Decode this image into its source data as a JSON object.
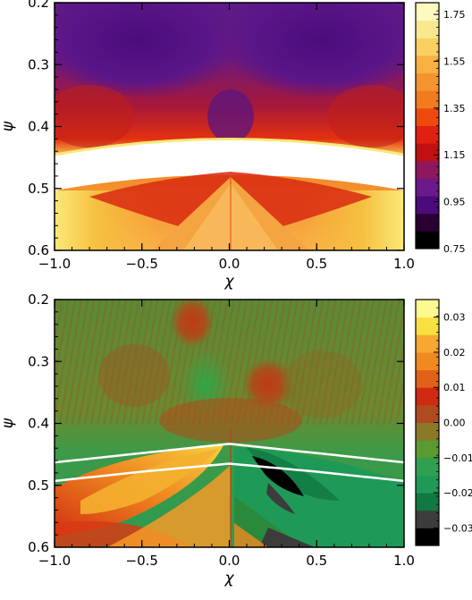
{
  "chart_data": [
    {
      "type": "heatmap",
      "title": "",
      "xlabel": "χ",
      "ylabel": "ψ",
      "xlim": [
        -1.0,
        1.0
      ],
      "ylim": [
        0.6,
        0.2
      ],
      "xticks": [
        "-1.0",
        "-0.5",
        "0.0",
        "0.5",
        "1.0"
      ],
      "yticks": [
        "0.2",
        "0.3",
        "0.4",
        "0.5",
        "0.6"
      ],
      "colorbar": {
        "range": [
          0.75,
          1.8
        ],
        "ticks": [
          "0.75",
          "0.95",
          "1.15",
          "1.35",
          "1.55",
          "1.75"
        ],
        "colors": [
          "#000000",
          "#2a0033",
          "#4c0a7a",
          "#6a1a8a",
          "#8e1860",
          "#c01010",
          "#e02010",
          "#ee4a10",
          "#f47a20",
          "#f49430",
          "#f8b040",
          "#fad060",
          "#f8e890",
          "#fdfac0"
        ]
      },
      "features": [
        "two purple minima near psi 0.25 on either side of chi 0",
        "white excluded band psi 0.43 to 0.49",
        "red wedge below band peaking at chi 0"
      ]
    },
    {
      "type": "heatmap",
      "title": "",
      "xlabel": "χ",
      "ylabel": "ψ",
      "xlim": [
        -1.0,
        1.0
      ],
      "ylim": [
        0.6,
        0.2
      ],
      "xticks": [
        "-1.0",
        "-0.5",
        "0.0",
        "0.5",
        "1.0"
      ],
      "yticks": [
        "0.2",
        "0.3",
        "0.4",
        "0.5",
        "0.6"
      ],
      "colorbar": {
        "range": [
          -0.035,
          0.035
        ],
        "ticks": [
          "-0.03",
          "-0.02",
          "-0.01",
          "0.00",
          "0.01",
          "0.02",
          "0.03"
        ],
        "colors": [
          "#000000",
          "#3c3c3c",
          "#107840",
          "#1e9a56",
          "#2ea050",
          "#5a9a30",
          "#8a7a28",
          "#b04a20",
          "#d02a10",
          "#e2601a",
          "#f08a20",
          "#f6a830",
          "#f8e040",
          "#fdf890"
        ]
      },
      "lines": [
        {
          "x": [
            -1.0,
            -0.5,
            0.0,
            0.5,
            1.0
          ],
          "y": [
            0.463,
            0.448,
            0.433,
            0.448,
            0.463
          ]
        },
        {
          "x": [
            -1.0,
            -0.5,
            0.0,
            0.5,
            1.0
          ],
          "y": [
            0.493,
            0.478,
            0.465,
            0.478,
            0.493
          ]
        }
      ]
    }
  ]
}
